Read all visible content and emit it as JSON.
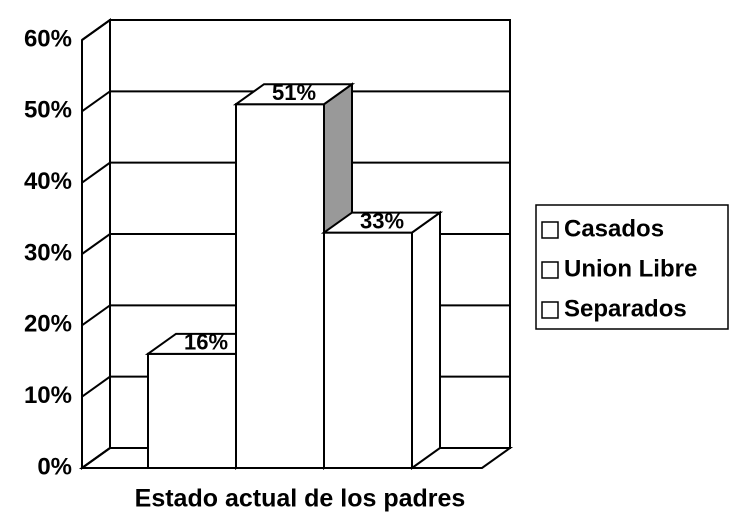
{
  "chart_data": {
    "type": "bar3d",
    "x_label": "Estado actual de los padres",
    "categories": [
      null
    ],
    "series": [
      {
        "name": "Casados",
        "color": "#ffffff",
        "values": [
          16
        ],
        "value_labels": [
          "16%"
        ]
      },
      {
        "name": "Union Libre",
        "color": "#ffffff",
        "values": [
          51
        ],
        "value_labels": [
          "51%"
        ]
      },
      {
        "name": "Separados",
        "color": "#ffffff",
        "values": [
          33
        ],
        "value_labels": [
          "33%"
        ]
      }
    ],
    "ylim": [
      0,
      60
    ],
    "yticks": [
      {
        "value": 0,
        "label": "0%"
      },
      {
        "value": 10,
        "label": "10%"
      },
      {
        "value": 20,
        "label": "20%"
      },
      {
        "value": 30,
        "label": "30%"
      },
      {
        "value": 40,
        "label": "40%"
      },
      {
        "value": 50,
        "label": "50%"
      },
      {
        "value": 60,
        "label": "60%"
      }
    ],
    "grid": true,
    "legend": "right"
  }
}
